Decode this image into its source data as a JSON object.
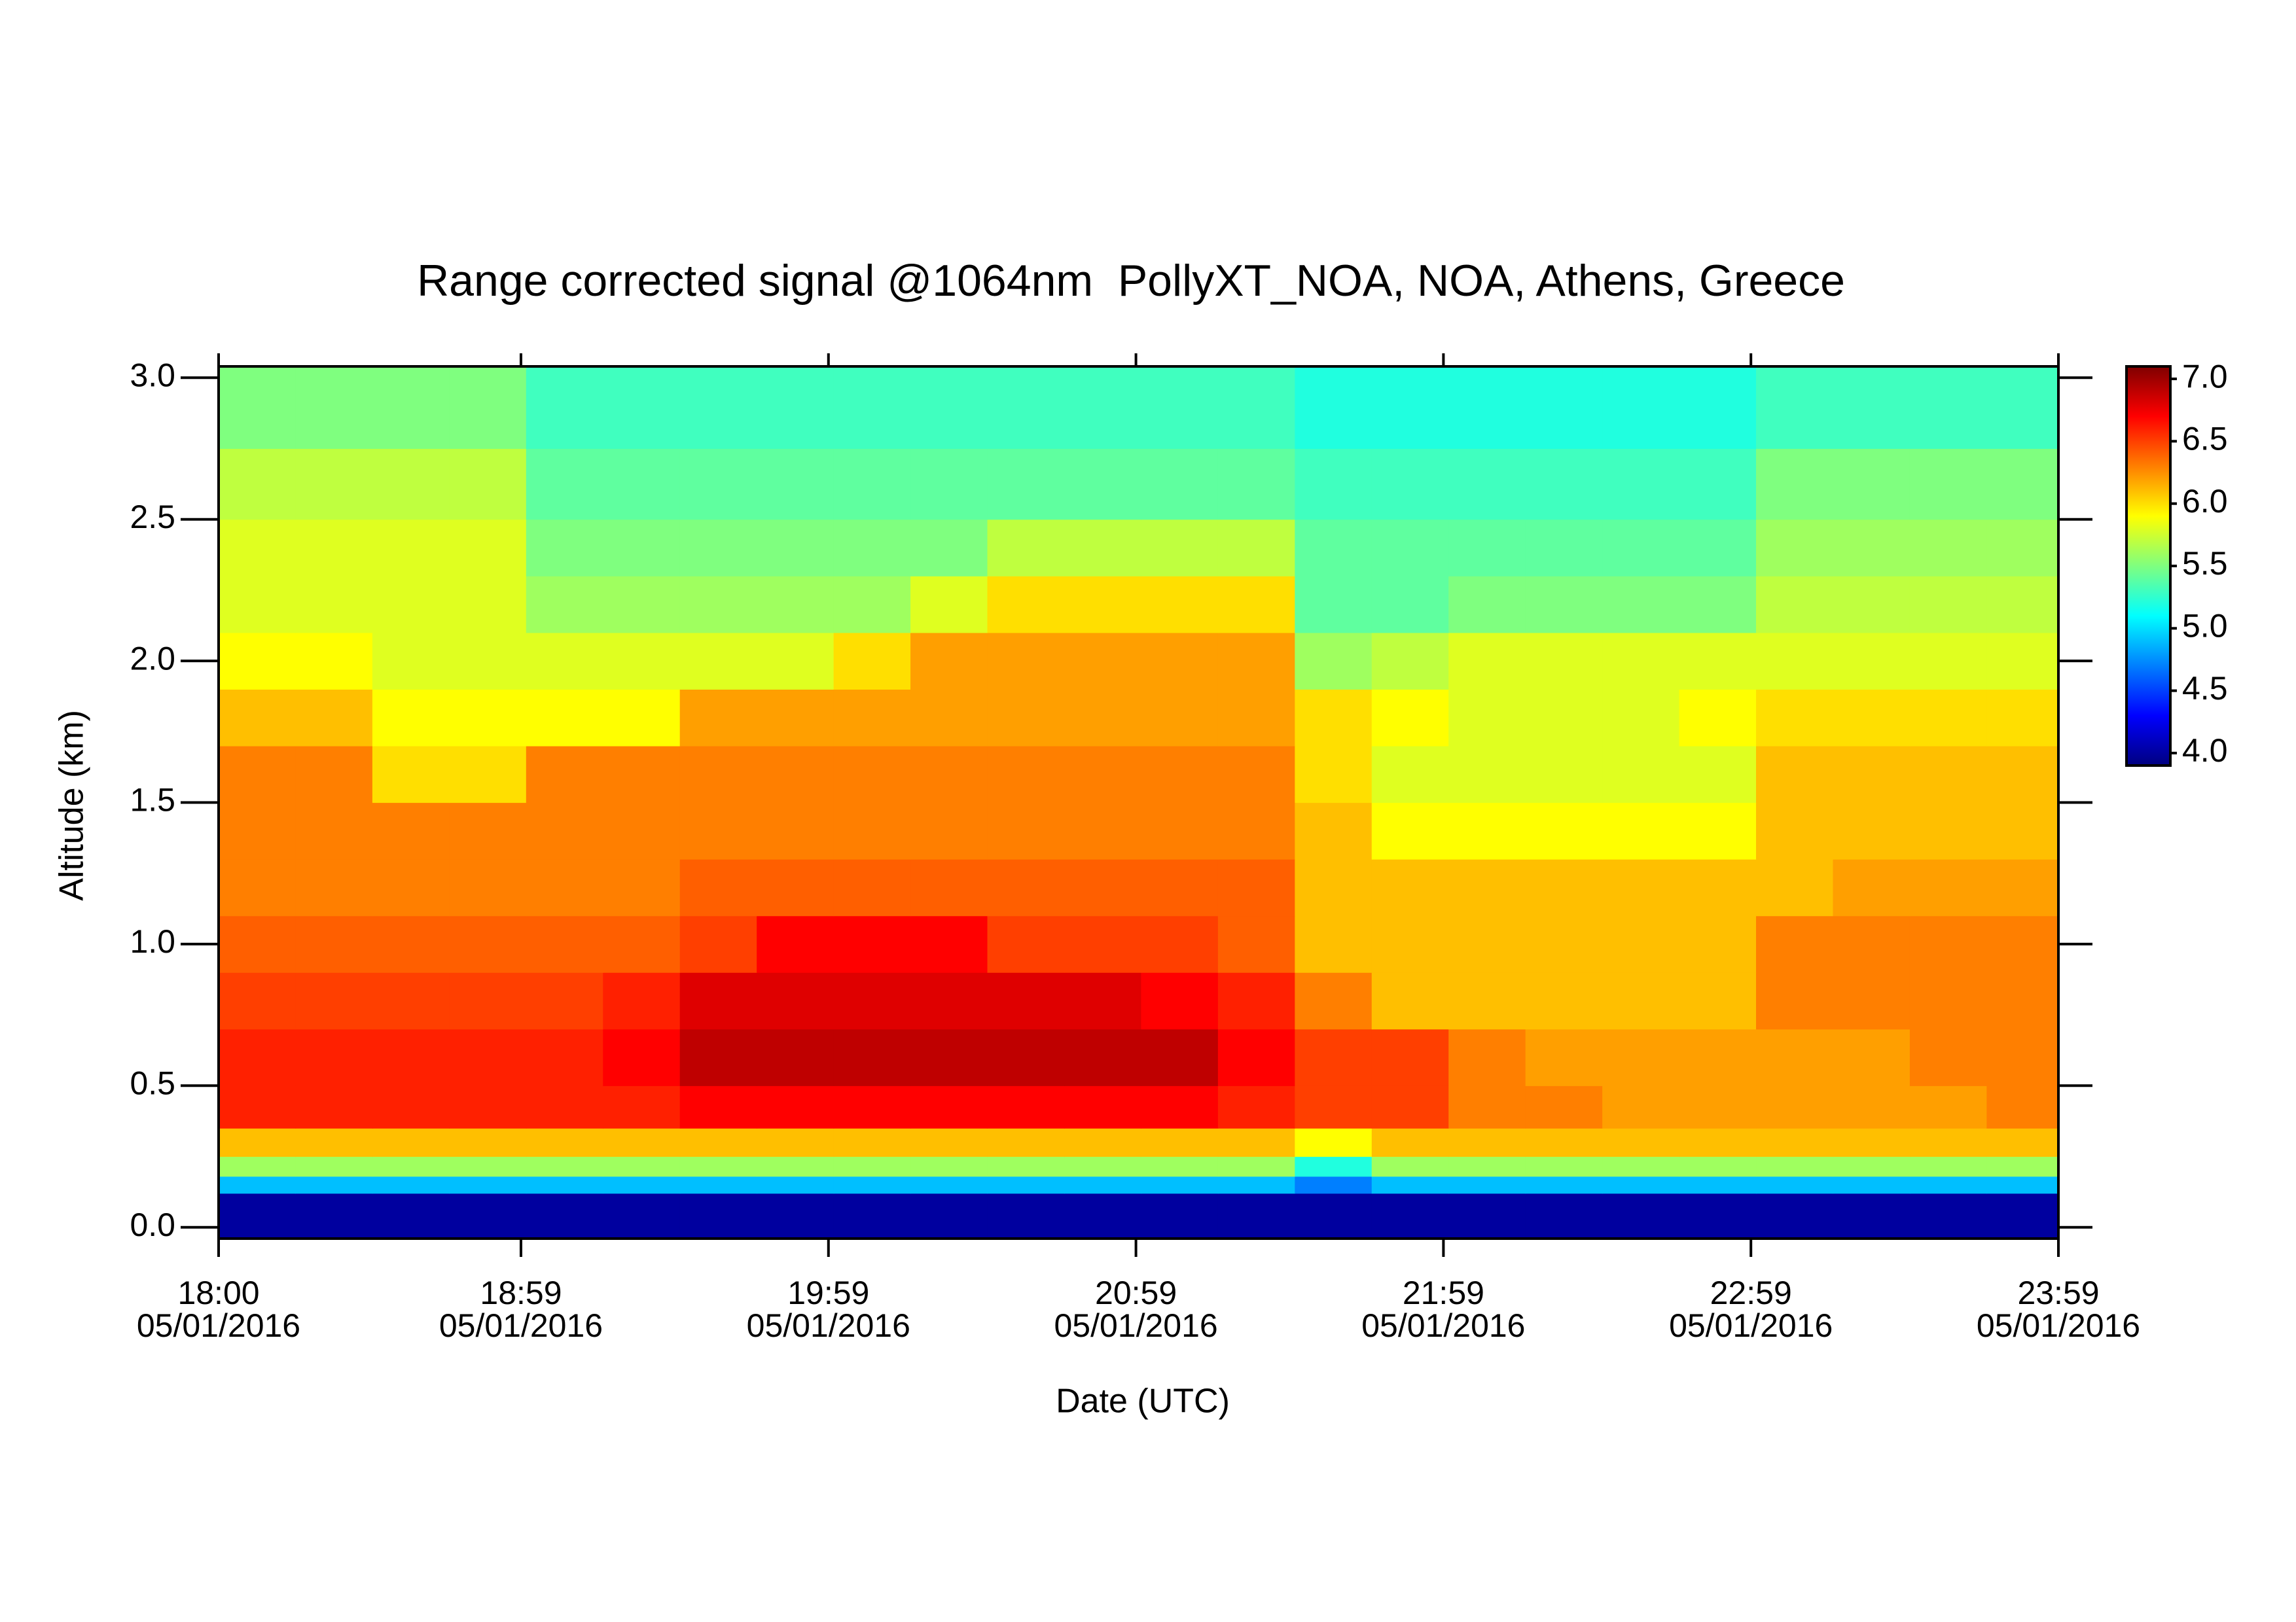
{
  "chart_data": {
    "type": "heatmap",
    "title": "Range corrected signal @1064nm  PollyXT_NOA, NOA, Athens, Greece",
    "x_label": "Date (UTC)",
    "y_label": "Altitude (km)",
    "xlim": [
      "18:00",
      "23:59"
    ],
    "xticks": [
      {
        "value": "18:00",
        "label": [
          "18:00",
          "05/01/2016"
        ]
      },
      {
        "value": "18:59",
        "label": [
          "18:59",
          "05/01/2016"
        ]
      },
      {
        "value": "19:59",
        "label": [
          "19:59",
          "05/01/2016"
        ]
      },
      {
        "value": "20:59",
        "label": [
          "20:59",
          "05/01/2016"
        ]
      },
      {
        "value": "21:59",
        "label": [
          "21:59",
          "05/01/2016"
        ]
      },
      {
        "value": "22:59",
        "label": [
          "22:59",
          "05/01/2016"
        ]
      },
      {
        "value": "23:59",
        "label": [
          "23:59",
          "05/01/2016"
        ]
      }
    ],
    "ylim": [
      -0.04,
      3.04
    ],
    "yticks": [
      {
        "value": 0,
        "label": "0.0"
      },
      0.5,
      {
        "value": 1,
        "label": "1.0"
      },
      1.5,
      {
        "value": 2,
        "label": "2.0"
      },
      2.5,
      {
        "value": 3,
        "label": "3.0"
      }
    ],
    "zlim": [
      3.9,
      7.1
    ],
    "zticks": [
      {
        "value": 4,
        "label": "4.0"
      },
      4.5,
      {
        "value": 5,
        "label": "5.0"
      },
      5.5,
      {
        "value": 6,
        "label": "6.0"
      },
      6.5,
      {
        "value": 7,
        "label": "7.0"
      }
    ],
    "colormap": [
      "#00007f",
      "#0000ff",
      "#007fff",
      "#00ffff",
      "#7fff7f",
      "#ffff00",
      "#ff7f00",
      "#ff0000",
      "#7f0000"
    ],
    "x": [
      "18:00",
      "18:15",
      "18:30",
      "18:45",
      "19:00",
      "19:15",
      "19:30",
      "19:45",
      "20:00",
      "20:15",
      "20:30",
      "20:45",
      "21:00",
      "21:15",
      "21:30",
      "21:45",
      "22:00",
      "22:15",
      "22:30",
      "22:45",
      "23:00",
      "23:15",
      "23:30",
      "23:45"
    ],
    "y": [
      -0.04,
      0.12,
      0.18,
      0.25,
      0.35,
      0.5,
      0.7,
      0.9,
      1.1,
      1.3,
      1.5,
      1.7,
      1.9,
      2.1,
      2.3,
      2.5,
      2.75
    ],
    "z": [
      [
        4.0,
        4.0,
        4.0,
        4.0,
        4.0,
        4.0,
        4.0,
        4.0,
        4.0,
        4.0,
        4.0,
        4.0,
        4.0,
        4.0,
        4.0,
        4.0,
        4.0,
        4.0,
        4.0,
        4.0,
        4.0,
        4.0,
        4.0,
        4.0
      ],
      [
        4.9,
        4.9,
        4.9,
        4.9,
        4.9,
        4.9,
        4.9,
        4.9,
        4.9,
        4.9,
        4.9,
        4.9,
        4.9,
        4.9,
        4.7,
        4.9,
        4.9,
        4.9,
        4.9,
        4.9,
        4.9,
        4.9,
        4.9,
        4.9
      ],
      [
        5.6,
        5.6,
        5.6,
        5.6,
        5.6,
        5.6,
        5.6,
        5.6,
        5.6,
        5.6,
        5.6,
        5.6,
        5.6,
        5.6,
        5.2,
        5.6,
        5.6,
        5.6,
        5.6,
        5.6,
        5.6,
        5.6,
        5.6,
        5.6
      ],
      [
        6.1,
        6.1,
        6.1,
        6.1,
        6.1,
        6.1,
        6.1,
        6.1,
        6.1,
        6.1,
        6.1,
        6.1,
        6.1,
        6.1,
        5.9,
        6.1,
        6.1,
        6.1,
        6.1,
        6.1,
        6.1,
        6.1,
        6.1,
        6.1
      ],
      [
        6.6,
        6.6,
        6.6,
        6.6,
        6.6,
        6.6,
        6.7,
        6.7,
        6.7,
        6.7,
        6.7,
        6.7,
        6.7,
        6.6,
        6.5,
        6.5,
        6.3,
        6.3,
        6.2,
        6.2,
        6.2,
        6.2,
        6.2,
        6.3
      ],
      [
        6.6,
        6.6,
        6.6,
        6.6,
        6.6,
        6.7,
        6.9,
        6.9,
        6.9,
        6.9,
        6.9,
        6.9,
        6.9,
        6.7,
        6.5,
        6.5,
        6.3,
        6.2,
        6.2,
        6.2,
        6.2,
        6.2,
        6.3,
        6.3
      ],
      [
        6.5,
        6.5,
        6.5,
        6.5,
        6.5,
        6.6,
        6.8,
        6.8,
        6.8,
        6.8,
        6.8,
        6.8,
        6.7,
        6.6,
        6.3,
        6.1,
        6.1,
        6.1,
        6.1,
        6.1,
        6.3,
        6.3,
        6.3,
        6.3
      ],
      [
        6.4,
        6.4,
        6.4,
        6.4,
        6.4,
        6.4,
        6.5,
        6.7,
        6.7,
        6.7,
        6.5,
        6.5,
        6.5,
        6.4,
        6.1,
        6.1,
        6.1,
        6.1,
        6.1,
        6.1,
        6.3,
        6.3,
        6.3,
        6.3
      ],
      [
        6.3,
        6.3,
        6.3,
        6.3,
        6.3,
        6.3,
        6.4,
        6.4,
        6.4,
        6.4,
        6.4,
        6.4,
        6.4,
        6.4,
        6.1,
        6.1,
        6.1,
        6.1,
        6.1,
        6.1,
        6.1,
        6.2,
        6.2,
        6.2
      ],
      [
        6.3,
        6.3,
        6.3,
        6.3,
        6.3,
        6.3,
        6.3,
        6.3,
        6.3,
        6.3,
        6.3,
        6.3,
        6.3,
        6.3,
        6.1,
        5.9,
        5.9,
        5.9,
        5.9,
        5.9,
        6.1,
        6.1,
        6.1,
        6.1
      ],
      [
        6.3,
        6.3,
        6.0,
        6.0,
        6.3,
        6.3,
        6.3,
        6.3,
        6.3,
        6.3,
        6.3,
        6.3,
        6.3,
        6.3,
        6.0,
        5.8,
        5.8,
        5.8,
        5.8,
        5.8,
        6.1,
        6.1,
        6.1,
        6.1
      ],
      [
        6.1,
        6.1,
        5.9,
        5.9,
        5.9,
        5.9,
        6.2,
        6.2,
        6.2,
        6.2,
        6.2,
        6.2,
        6.2,
        6.2,
        6.0,
        5.9,
        5.8,
        5.8,
        5.8,
        5.9,
        6.0,
        6.0,
        6.0,
        6.0
      ],
      [
        5.9,
        5.9,
        5.8,
        5.8,
        5.8,
        5.8,
        5.8,
        5.8,
        6.0,
        6.2,
        6.2,
        6.2,
        6.2,
        6.2,
        5.6,
        5.7,
        5.8,
        5.8,
        5.8,
        5.8,
        5.8,
        5.8,
        5.8,
        5.8
      ],
      [
        5.8,
        5.8,
        5.8,
        5.8,
        5.6,
        5.6,
        5.6,
        5.6,
        5.6,
        5.8,
        6.0,
        6.0,
        6.0,
        6.0,
        5.4,
        5.4,
        5.5,
        5.5,
        5.5,
        5.5,
        5.7,
        5.7,
        5.7,
        5.7
      ],
      [
        5.8,
        5.8,
        5.8,
        5.8,
        5.5,
        5.5,
        5.5,
        5.5,
        5.5,
        5.5,
        5.7,
        5.7,
        5.7,
        5.7,
        5.4,
        5.4,
        5.4,
        5.4,
        5.4,
        5.4,
        5.6,
        5.6,
        5.6,
        5.6
      ],
      [
        5.7,
        5.7,
        5.7,
        5.7,
        5.4,
        5.4,
        5.4,
        5.4,
        5.4,
        5.4,
        5.4,
        5.4,
        5.4,
        5.4,
        5.3,
        5.3,
        5.3,
        5.3,
        5.3,
        5.3,
        5.5,
        5.5,
        5.5,
        5.5
      ],
      [
        5.5,
        5.5,
        5.5,
        5.5,
        5.3,
        5.3,
        5.3,
        5.3,
        5.3,
        5.3,
        5.3,
        5.3,
        5.3,
        5.3,
        5.2,
        5.2,
        5.2,
        5.2,
        5.2,
        5.2,
        5.3,
        5.3,
        5.3,
        5.3
      ]
    ]
  }
}
